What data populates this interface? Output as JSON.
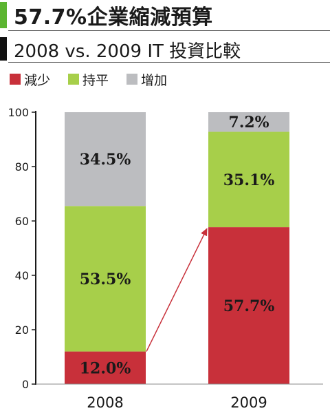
{
  "header": {
    "title": "57.7%企業縮減預算",
    "subtitle": "2008 vs. 2009 IT 投資比較"
  },
  "colors": {
    "title_accent": "#5cb531",
    "subtitle_accent": "#111111"
  },
  "chart_data": {
    "type": "bar",
    "stacked": true,
    "categories": [
      "2008",
      "2009"
    ],
    "series": [
      {
        "name": "減少",
        "color": "#c8303a",
        "values": [
          12.0,
          57.7
        ],
        "labels": [
          "12.0%",
          "57.7%"
        ]
      },
      {
        "name": "持平",
        "color": "#a7cf4a",
        "values": [
          53.5,
          35.1
        ],
        "labels": [
          "53.5%",
          "35.1%"
        ]
      },
      {
        "name": "增加",
        "color": "#bcbdc0",
        "values": [
          34.5,
          7.2
        ],
        "labels": [
          "34.5%",
          "7.2%"
        ]
      }
    ],
    "ylim": [
      0,
      100
    ],
    "yticks": [
      "0",
      "20",
      "40",
      "60",
      "80",
      "100"
    ],
    "legend": "top-left",
    "annotation": "arrow from 2008 減少 to 2009 減少",
    "grid": false
  }
}
